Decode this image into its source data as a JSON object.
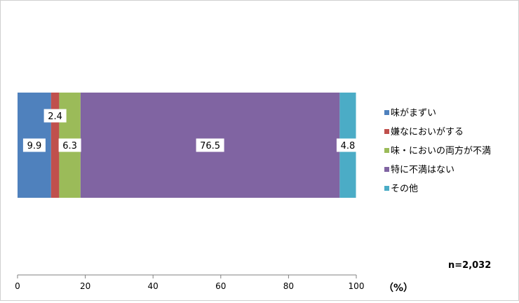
{
  "chart_data": {
    "type": "bar",
    "orientation": "horizontal",
    "stacked": true,
    "title": "",
    "xlabel": "（%）",
    "ylabel": "",
    "xlim": [
      0,
      100
    ],
    "xticks": [
      "0",
      "20",
      "40",
      "60",
      "80",
      "100"
    ],
    "note": "n=2,032",
    "legend_position": "right",
    "series": [
      {
        "name": "味がまずい",
        "value": 9.9,
        "label": "9.9",
        "color": "#4f81bd"
      },
      {
        "name": "嫌なにおいがする",
        "value": 2.4,
        "label": "2.4",
        "color": "#c0504d"
      },
      {
        "name": "味・においの両方が不満",
        "value": 6.3,
        "label": "6.3",
        "color": "#9bbb59"
      },
      {
        "name": "特に不満はない",
        "value": 76.5,
        "label": "76.5",
        "color": "#8064a2"
      },
      {
        "name": "その他",
        "value": 4.8,
        "label": "4.8",
        "color": "#4bacc6"
      }
    ]
  }
}
